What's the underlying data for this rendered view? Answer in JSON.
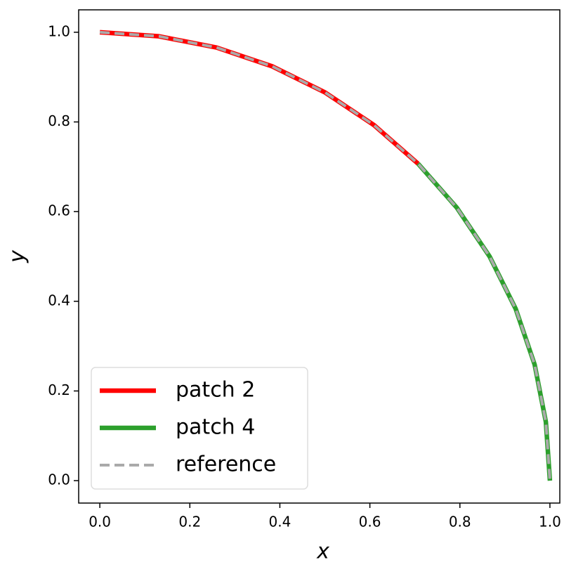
{
  "chart_data": {
    "type": "line",
    "xlabel": "x",
    "ylabel": "y",
    "xlim": [
      -0.047,
      1.022
    ],
    "ylim": [
      -0.05,
      1.05
    ],
    "xticks": [
      {
        "value": 0,
        "label": "0.0"
      },
      {
        "value": 0.2,
        "label": "0.2"
      },
      {
        "value": 0.4,
        "label": "0.4"
      },
      {
        "value": 0.6,
        "label": "0.6"
      },
      {
        "value": 0.8,
        "label": "0.8"
      },
      {
        "value": 1,
        "label": "1.0"
      }
    ],
    "yticks": [
      {
        "value": 0,
        "label": "0.0"
      },
      {
        "value": 0.2,
        "label": "0.2"
      },
      {
        "value": 0.4,
        "label": "0.4"
      },
      {
        "value": 0.6,
        "label": "0.6"
      },
      {
        "value": 0.8,
        "label": "0.8"
      },
      {
        "value": 1,
        "label": "1.0"
      }
    ],
    "legend": "lower left",
    "series": [
      {
        "name": "patch 2",
        "color": "#ff0000",
        "style": "solid",
        "x": [
          0,
          0.131,
          0.259,
          0.383,
          0.5,
          0.609,
          0.707
        ],
        "values": [
          1,
          0.991,
          0.966,
          0.924,
          0.866,
          0.793,
          0.707
        ]
      },
      {
        "name": "patch 4",
        "color": "#2ca02c",
        "style": "solid",
        "x": [
          0.707,
          0.793,
          0.866,
          0.924,
          0.966,
          0.991,
          1
        ],
        "values": [
          0.707,
          0.609,
          0.5,
          0.383,
          0.259,
          0.131,
          0
        ]
      },
      {
        "name": "reference",
        "color": "#aaaaaa",
        "style": "dashed",
        "x": [
          0,
          0.131,
          0.259,
          0.383,
          0.5,
          0.609,
          0.707,
          0.793,
          0.866,
          0.924,
          0.966,
          0.991,
          1
        ],
        "values": [
          1,
          0.991,
          0.966,
          0.924,
          0.866,
          0.793,
          0.707,
          0.609,
          0.5,
          0.383,
          0.259,
          0.131,
          0
        ]
      }
    ]
  }
}
